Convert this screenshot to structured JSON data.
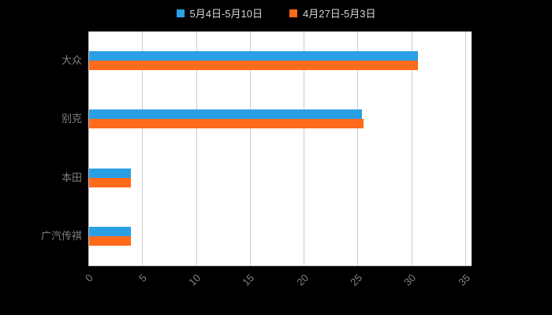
{
  "chart_data": {
    "type": "bar",
    "orientation": "horizontal",
    "title": "",
    "xlabel": "",
    "ylabel": "",
    "categories": [
      "大众",
      "别克",
      "本田",
      "广汽传祺"
    ],
    "series": [
      {
        "name": "5月4日-5月10日",
        "color": "#2B9FE4",
        "values": [
          30.5,
          25.3,
          3.9,
          3.9
        ]
      },
      {
        "name": "4月27日-5月3日",
        "color": "#FF6A1B",
        "values": [
          30.5,
          25.5,
          3.9,
          3.9
        ]
      }
    ],
    "xlim": [
      0,
      35
    ],
    "xticks": [
      "0",
      "5",
      "10",
      "15",
      "20",
      "25",
      "30",
      "35"
    ],
    "grid": true,
    "legend_position": "top",
    "page_background": "#000000",
    "plot_background": "#ffffff",
    "gridline_color": "#cccccc",
    "axis_label_color": "#808080"
  }
}
